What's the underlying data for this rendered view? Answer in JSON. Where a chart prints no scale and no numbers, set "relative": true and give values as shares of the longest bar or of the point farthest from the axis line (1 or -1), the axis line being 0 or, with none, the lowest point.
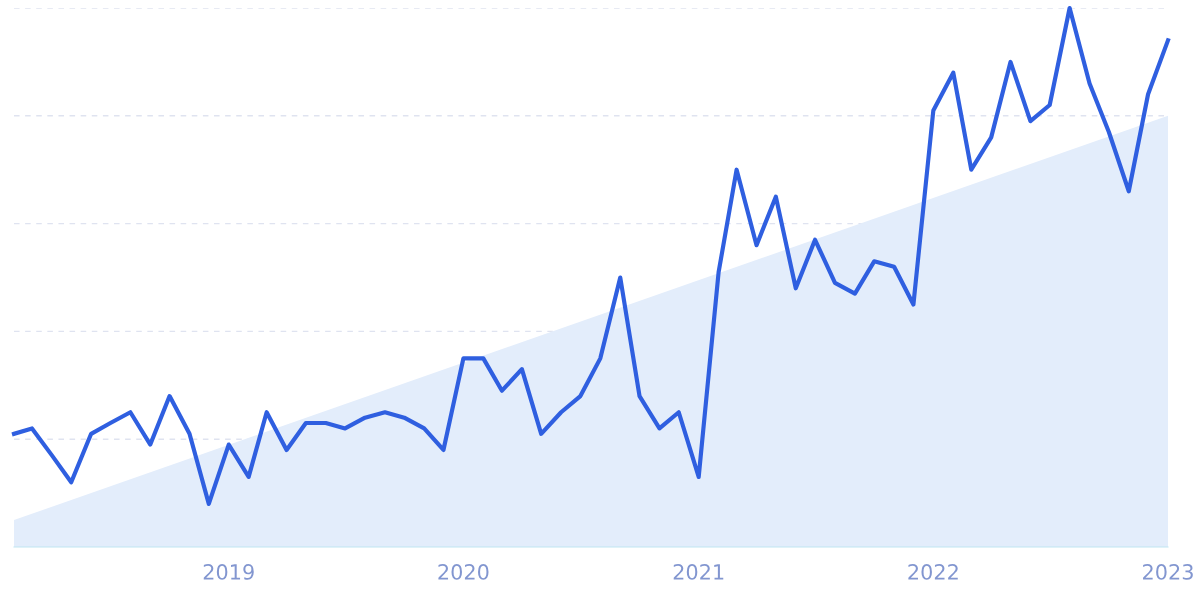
{
  "chart_data": {
    "type": "line",
    "relative": true,
    "x": [
      "2018-02",
      "2018-03",
      "2018-04",
      "2018-05",
      "2018-06",
      "2018-07",
      "2018-08",
      "2018-09",
      "2018-10",
      "2018-11",
      "2018-12",
      "2019-01",
      "2019-02",
      "2019-03",
      "2019-04",
      "2019-05",
      "2019-06",
      "2019-07",
      "2019-08",
      "2019-09",
      "2019-10",
      "2019-11",
      "2019-12",
      "2020-01",
      "2020-02",
      "2020-03",
      "2020-04",
      "2020-05",
      "2020-06",
      "2020-07",
      "2020-08",
      "2020-09",
      "2020-10",
      "2020-11",
      "2020-12",
      "2021-01",
      "2021-02",
      "2021-03",
      "2021-04",
      "2021-05",
      "2021-06",
      "2021-07",
      "2021-08",
      "2021-09",
      "2021-10",
      "2021-11",
      "2021-12",
      "2022-01",
      "2022-02",
      "2022-03",
      "2022-04",
      "2022-05",
      "2022-06",
      "2022-07",
      "2022-08",
      "2022-09",
      "2022-10",
      "2022-11",
      "2022-12",
      "2023-01"
    ],
    "series": [
      {
        "type": "area",
        "color": "#e3edfb",
        "x": [
          "2018-02",
          "2023-01"
        ],
        "values": [
          0.05,
          0.8
        ]
      },
      {
        "type": "line",
        "color": "#2f5fe0",
        "values": [
          0.21,
          0.22,
          0.17,
          0.12,
          0.21,
          0.23,
          0.25,
          0.19,
          0.28,
          0.21,
          0.08,
          0.19,
          0.13,
          0.25,
          0.18,
          0.23,
          0.23,
          0.22,
          0.24,
          0.25,
          0.24,
          0.22,
          0.18,
          0.35,
          0.35,
          0.29,
          0.33,
          0.21,
          0.25,
          0.28,
          0.35,
          0.5,
          0.28,
          0.22,
          0.25,
          0.13,
          0.51,
          0.7,
          0.56,
          0.65,
          0.48,
          0.57,
          0.49,
          0.47,
          0.53,
          0.52,
          0.45,
          0.81,
          0.88,
          0.7,
          0.76,
          0.9,
          0.79,
          0.82,
          1.0,
          0.86,
          0.77,
          0.66,
          0.84,
          0.94
        ]
      }
    ],
    "xlim": [
      "2018-02",
      "2023-01"
    ],
    "xticks": [
      "2019",
      "2020",
      "2021",
      "2022",
      "2023"
    ],
    "grid": "y",
    "line_style": "solid",
    "marker": "none",
    "legend": false
  }
}
